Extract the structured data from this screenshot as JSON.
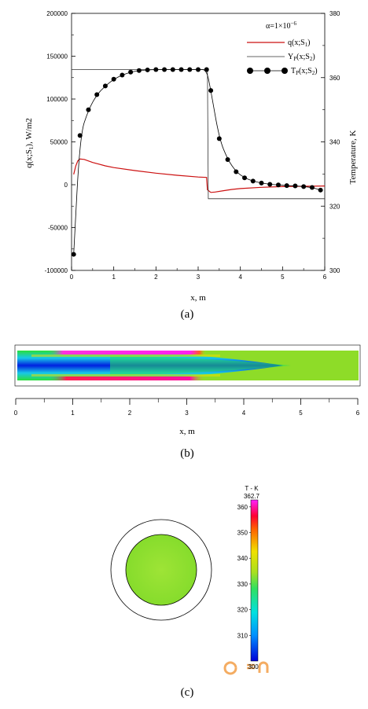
{
  "chart_data": [
    {
      "type": "line",
      "panel": "(a)",
      "xlabel": "x, m",
      "ylabel": "q(x;S1), W/m2",
      "ylabel_parts": [
        "q(x;S",
        "1",
        "), W/m2"
      ],
      "y2label": "Temperature, K",
      "xlim": [
        0,
        6
      ],
      "ylim": [
        -100000,
        200000
      ],
      "y2lim": [
        300,
        380
      ],
      "x_ticks": [
        "0",
        "1",
        "2",
        "3",
        "4",
        "5",
        "6"
      ],
      "y_ticks": [
        "-100000",
        "-50000",
        "0",
        "50000",
        "100000",
        "150000",
        "200000"
      ],
      "y2_ticks": [
        "300",
        "320",
        "340",
        "360",
        "380"
      ],
      "annotation": "α=1×10⁻⁶",
      "annotation_parts": [
        "α=1×10",
        "−6"
      ],
      "legend_position": "top-right",
      "series": [
        {
          "name": "q(x;S1)",
          "name_parts": [
            "q(x;S",
            "1",
            ")"
          ],
          "axis": "left",
          "color": "#cc1111",
          "marker": "none",
          "x": [
            0.05,
            0.1,
            0.15,
            0.2,
            0.3,
            0.5,
            0.8,
            1.0,
            1.5,
            2.0,
            2.5,
            3.0,
            3.2,
            3.22,
            3.3,
            3.4,
            3.6,
            3.8,
            4.0,
            4.5,
            5.0,
            5.5,
            6.0
          ],
          "y": [
            12000,
            22000,
            28000,
            30000,
            29500,
            26000,
            22000,
            20000,
            16500,
            13500,
            11000,
            9000,
            8500,
            -6000,
            -9000,
            -8500,
            -7000,
            -5500,
            -4500,
            -3000,
            -2200,
            -1800,
            -1500
          ]
        },
        {
          "name": "YP(x;S2)",
          "name_parts": [
            "Y",
            "P",
            "(x;S",
            "2",
            ")"
          ],
          "axis": "right",
          "color": "#333333",
          "marker": "none",
          "x": [
            0,
            3.22,
            3.24,
            6.0
          ],
          "y": [
            362.5,
            362.5,
            322.3,
            322.3
          ]
        },
        {
          "name": "TP(x;S2)",
          "name_parts": [
            "T",
            "P",
            "(x;S",
            "2",
            ")"
          ],
          "axis": "right",
          "color": "#000000",
          "marker": "circle",
          "x": [
            0.05,
            0.2,
            0.4,
            0.6,
            0.8,
            1.0,
            1.2,
            1.4,
            1.6,
            1.8,
            2.0,
            2.2,
            2.4,
            2.6,
            2.8,
            3.0,
            3.2,
            3.3,
            3.5,
            3.7,
            3.9,
            4.1,
            4.3,
            4.5,
            4.7,
            4.9,
            5.1,
            5.3,
            5.5,
            5.7,
            5.9
          ],
          "y": [
            305,
            342.0,
            350.0,
            354.7,
            357.4,
            359.5,
            360.8,
            361.7,
            362.2,
            362.4,
            362.5,
            362.5,
            362.5,
            362.5,
            362.5,
            362.5,
            362.5,
            356.0,
            341.0,
            334.5,
            330.7,
            328.8,
            327.8,
            327.2,
            326.8,
            326.6,
            326.4,
            326.3,
            326.1,
            325.8,
            325.0
          ]
        }
      ]
    },
    {
      "type": "heatmap",
      "panel": "(b)",
      "xlabel": "x, m",
      "xlim": [
        0,
        6
      ],
      "x_ticks": [
        "0",
        "1",
        "2",
        "3",
        "4",
        "5",
        "6"
      ],
      "description_fields": {
        "hot_wall_end_x": 3.3
      }
    },
    {
      "type": "heatmap",
      "panel": "(c)",
      "colorbar_title": "T - K",
      "colorbar_max_label": "362.7",
      "colorbar_range": [
        300,
        362.7
      ],
      "colorbar_ticks": [
        "360",
        "350",
        "340",
        "330",
        "320",
        "310",
        "300"
      ],
      "colorbar_min_label": "300"
    }
  ],
  "captions": {
    "a": "(a)",
    "b": "(b)",
    "c": "(c)"
  },
  "colors": {
    "q_line": "#cc1111",
    "y_line": "#333333",
    "t_marker": "#000000"
  }
}
